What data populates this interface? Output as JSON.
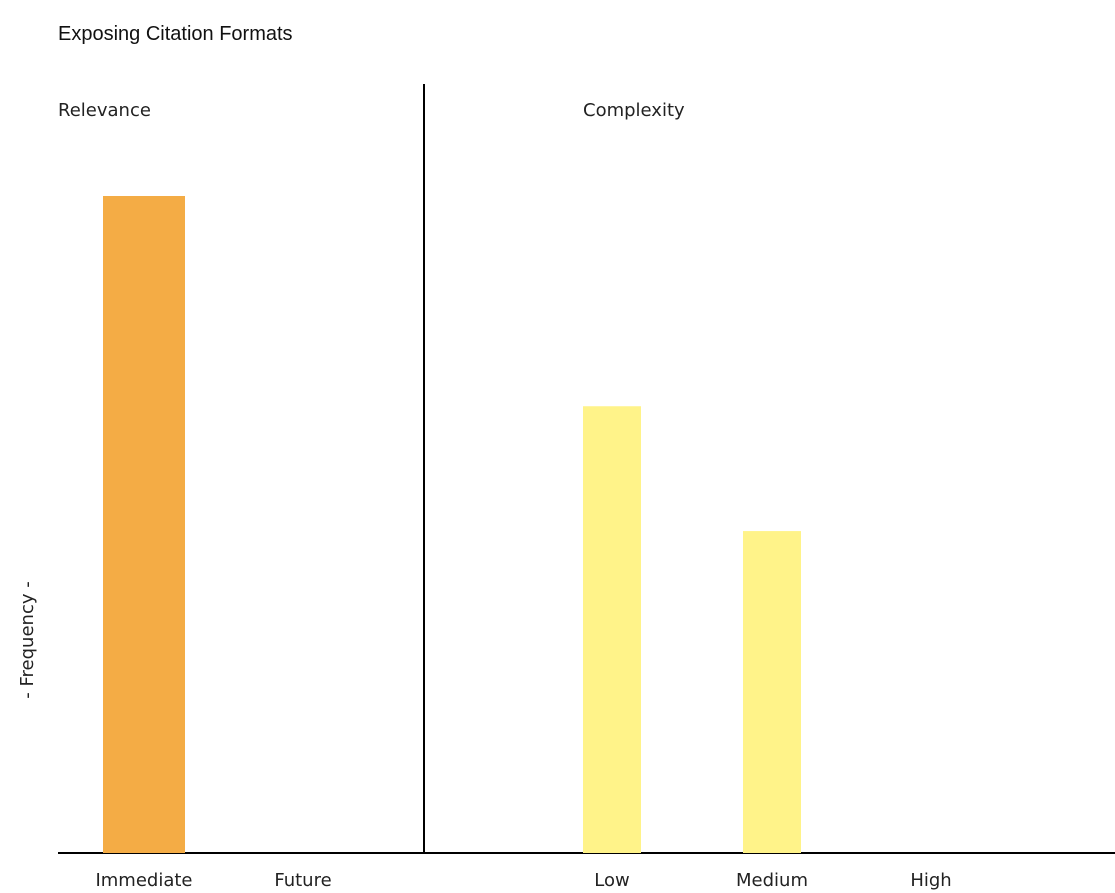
{
  "chart_data": {
    "type": "bar",
    "title": "Exposing Citation Formats",
    "ylabel": "- Frequency -",
    "xlabel": "",
    "ylim": [
      0,
      100
    ],
    "grid": false,
    "panels": [
      {
        "name": "Relevance",
        "color": "#F4AC45",
        "categories": [
          "Immediate",
          "Future"
        ],
        "values": [
          100,
          0
        ]
      },
      {
        "name": "Complexity",
        "color": "#FFF389",
        "categories": [
          "Low",
          "Medium",
          "High"
        ],
        "values": [
          68,
          49,
          0
        ]
      }
    ]
  }
}
